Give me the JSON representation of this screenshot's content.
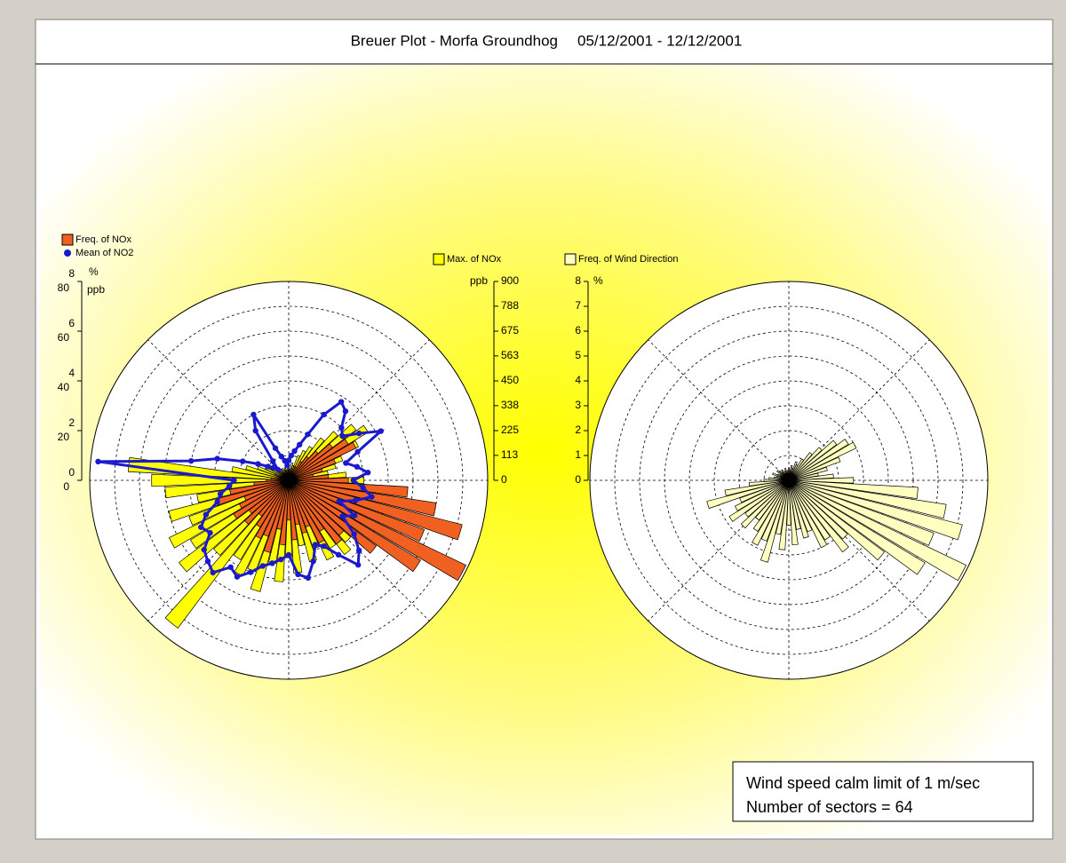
{
  "header": {
    "title": "Breuer Plot - Morfa Groundhog",
    "period": "05/12/2001 - 12/12/2001"
  },
  "note": {
    "lines": [
      "Wind speed calm limit of 1 m/sec",
      "Number of sectors = 64"
    ]
  },
  "chart_data": [
    {
      "type": "polar",
      "axes": [
        {
          "unit": "%",
          "lim": [
            0,
            8
          ],
          "ticks": [
            0,
            2,
            4,
            6,
            8
          ]
        },
        {
          "unit": "ppb",
          "lim": [
            0,
            80
          ],
          "ticks": [
            0,
            20,
            40,
            60,
            80
          ]
        },
        {
          "unit": "ppb",
          "lim": [
            0,
            900
          ],
          "ticks": [
            0,
            113,
            225,
            338,
            450,
            563,
            675,
            788,
            900
          ]
        }
      ],
      "series": [
        {
          "name": "Max. of NOx",
          "style": "bars",
          "axis": 2,
          "color": "#ffff00",
          "values": [
            60,
            50,
            80,
            70,
            120,
            150,
            180,
            240,
            300,
            380,
            420,
            350,
            260,
            220,
            180,
            260,
            340,
            480,
            560,
            620,
            540,
            680,
            580,
            460,
            380,
            420,
            360,
            400,
            330,
            380,
            300,
            420,
            350,
            460,
            380,
            520,
            440,
            480,
            420,
            836,
            460,
            620,
            520,
            600,
            480,
            560,
            420,
            560,
            620,
            727,
            260,
            200,
            150,
            120,
            100,
            90,
            80,
            70,
            60,
            60,
            50,
            60,
            50,
            50
          ]
        },
        {
          "name": "Freq. of NOx",
          "style": "bars",
          "axis": 0,
          "color": "#f06020",
          "values": [
            0.4,
            0.3,
            0.5,
            0.4,
            0.6,
            0.6,
            0.9,
            1.2,
            1.6,
            2.2,
            2.8,
            3.0,
            2.0,
            1.4,
            1.0,
            1.6,
            2.4,
            4.8,
            6.0,
            7.2,
            5.8,
            7.9,
            6.2,
            4.4,
            3.0,
            3.2,
            2.4,
            2.8,
            2.0,
            2.2,
            1.8,
            2.4,
            1.6,
            2.6,
            2.0,
            3.0,
            2.4,
            2.6,
            2.2,
            1.8,
            2.4,
            2.0,
            2.6,
            2.2,
            1.9,
            3.0,
            2.4,
            1.4,
            0.9,
            0.7,
            0.5,
            0.4,
            0.6,
            0.4,
            0.3,
            0.5,
            0.4,
            0.3,
            0.4,
            0.3,
            0.3,
            0.4,
            0.3,
            0.3
          ]
        },
        {
          "name": "Mean of NO2",
          "style": "line",
          "axis": 1,
          "color": "#1a1acc",
          "values": [
            8,
            10,
            12,
            15,
            20,
            30,
            38,
            36,
            30,
            28,
            34,
            42,
            30,
            24,
            28,
            32,
            26,
            30,
            34,
            28,
            22,
            30,
            26,
            34,
            40,
            44,
            36,
            30,
            28,
            34,
            40,
            38,
            30,
            32,
            34,
            36,
            40,
            44,
            42,
            48,
            46,
            44,
            38,
            40,
            36,
            30,
            28,
            24,
            22,
            77,
            40,
            30,
            20,
            14,
            10,
            8,
            6,
            10,
            24,
            30,
            14,
            10,
            8,
            6
          ]
        }
      ]
    },
    {
      "type": "polar",
      "axes": [
        {
          "unit": "%",
          "lim": [
            0,
            8
          ],
          "ticks": [
            0,
            1,
            2,
            3,
            4,
            5,
            6,
            7,
            8
          ]
        }
      ],
      "series": [
        {
          "name": "Freq. of Wind Direction",
          "style": "bars",
          "axis": 0,
          "color": "#ffffc0",
          "values": [
            0.5,
            0.4,
            0.6,
            0.5,
            0.8,
            0.7,
            1.0,
            1.4,
            1.8,
            2.4,
            2.8,
            3.0,
            2.2,
            1.6,
            1.2,
            1.8,
            2.6,
            5.2,
            6.4,
            7.2,
            6.2,
            7.9,
            6.4,
            4.8,
            3.2,
            3.6,
            2.8,
            3.0,
            2.2,
            2.4,
            2.0,
            2.6,
            1.8,
            2.8,
            2.2,
            3.4,
            2.6,
            2.9,
            2.4,
            2.0,
            2.6,
            2.2,
            2.8,
            2.4,
            2.1,
            3.4,
            2.6,
            1.6,
            1.0,
            0.8,
            0.6,
            0.5,
            0.7,
            0.5,
            0.4,
            0.6,
            0.5,
            0.4,
            0.5,
            0.3,
            0.4,
            0.5,
            0.3,
            0.4
          ]
        }
      ]
    }
  ]
}
